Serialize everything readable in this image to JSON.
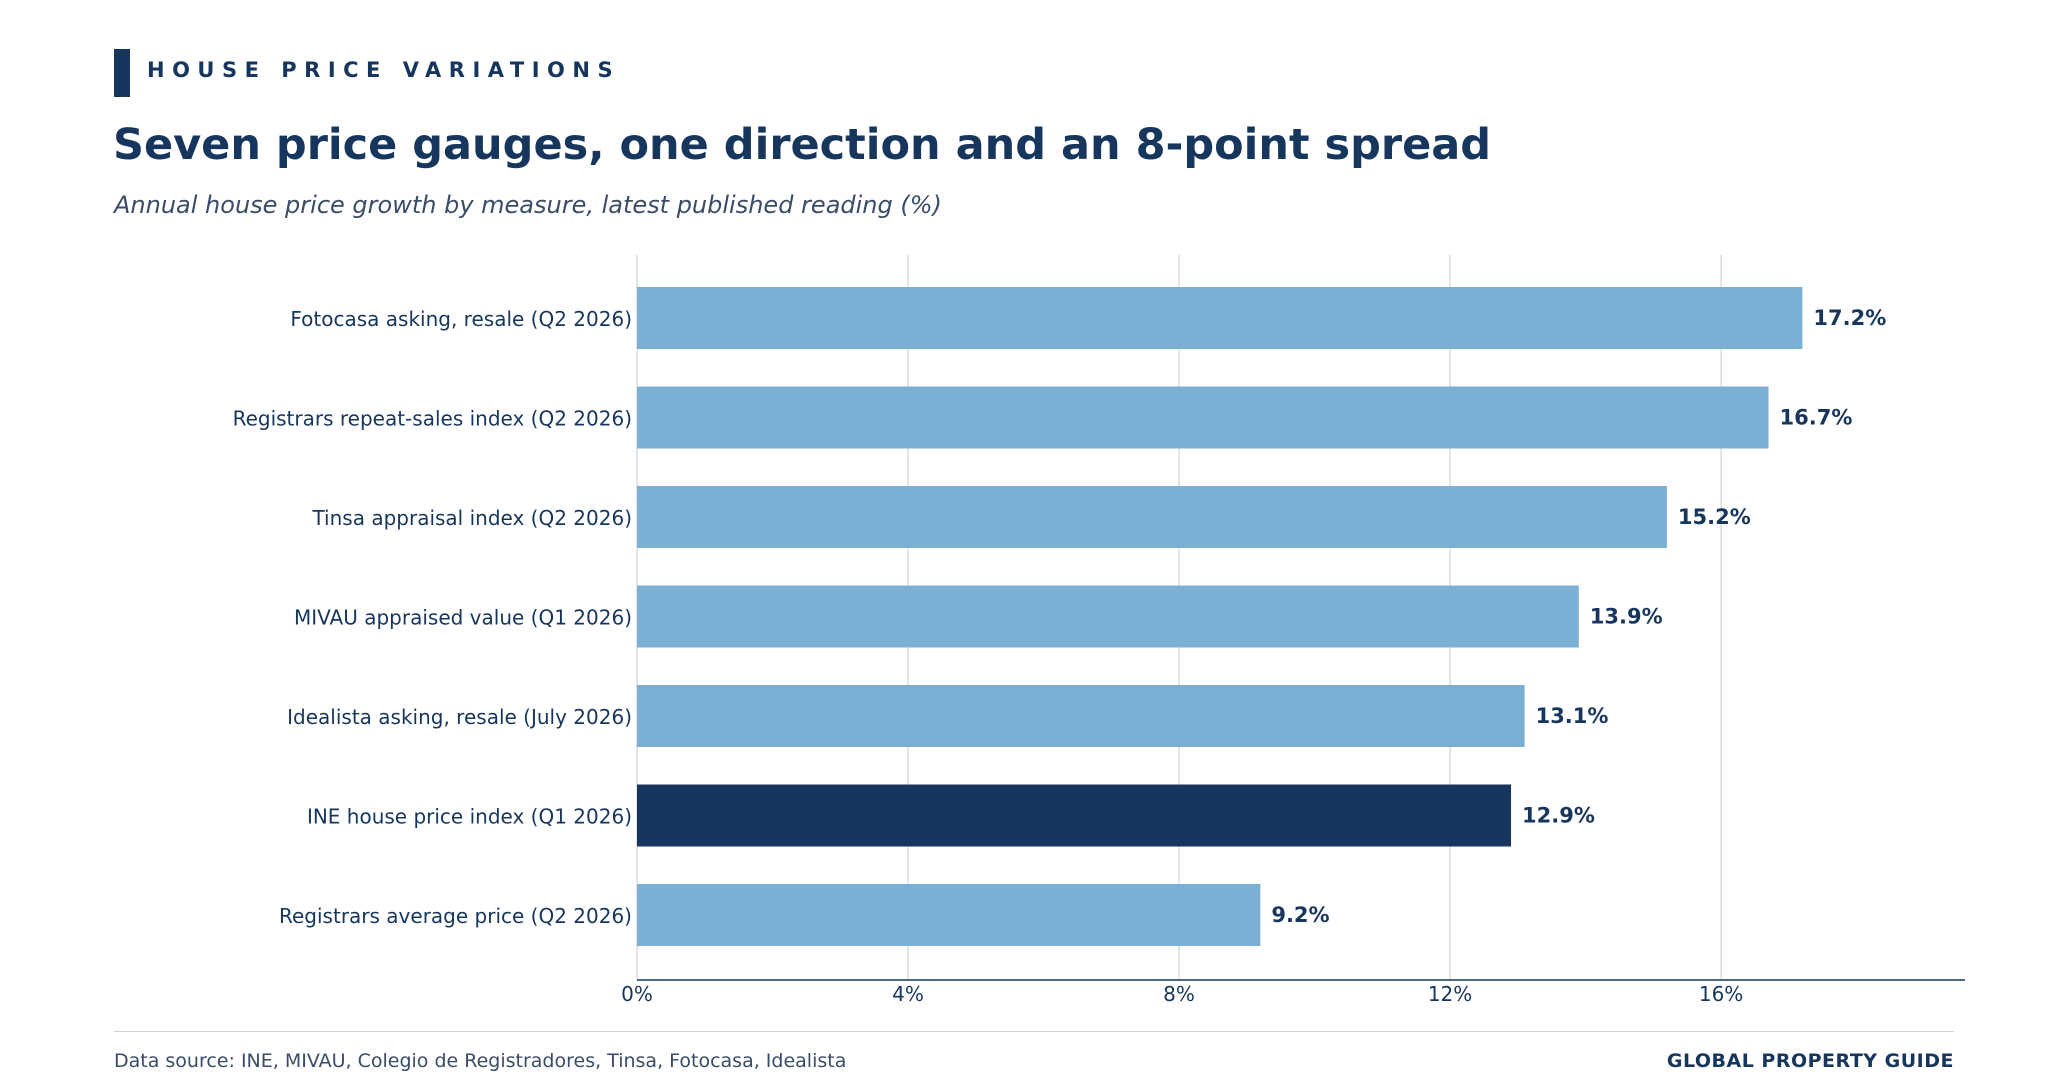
{
  "header": {
    "eyebrow": "HOUSE PRICE VARIATIONS",
    "title": "Seven price gauges, one direction and an 8-point spread",
    "subtitle": "Annual house price growth by measure, latest published reading (%)"
  },
  "footer": {
    "source": "Data source: INE, MIVAU, Colegio de Registradores, Tinsa, Fotocasa, Idealista",
    "brand": "GLOBAL PROPERTY GUIDE"
  },
  "colors": {
    "bar": "#7bafd4",
    "highlight": "#17365d",
    "text": "#17365d",
    "grid": "#d9dde2",
    "axis": "#17365d"
  },
  "chart_data": {
    "type": "bar",
    "orientation": "horizontal",
    "categories": [
      "Fotocasa asking, resale (Q2 2026)",
      "Registrars repeat-sales index (Q2 2026)",
      "Tinsa appraisal index (Q2 2026)",
      "MIVAU appraised value (Q1 2026)",
      "Idealista asking, resale (July 2026)",
      "INE house price index (Q1 2026)",
      "Registrars average price (Q2 2026)"
    ],
    "values": [
      17.2,
      16.7,
      15.2,
      13.9,
      13.1,
      12.9,
      9.2
    ],
    "value_labels": [
      "17.2%",
      "16.7%",
      "15.2%",
      "13.9%",
      "13.1%",
      "12.9%",
      "9.2%"
    ],
    "highlight": "INE house price index (Q1 2026)",
    "x_ticks": [
      0,
      4,
      8,
      12,
      16
    ],
    "x_tick_labels": [
      "0%",
      "4%",
      "8%",
      "12%",
      "16%"
    ],
    "xlim": [
      0,
      19.6
    ],
    "xlabel": "",
    "ylabel": "",
    "grid": "vertical",
    "legend": "none"
  }
}
